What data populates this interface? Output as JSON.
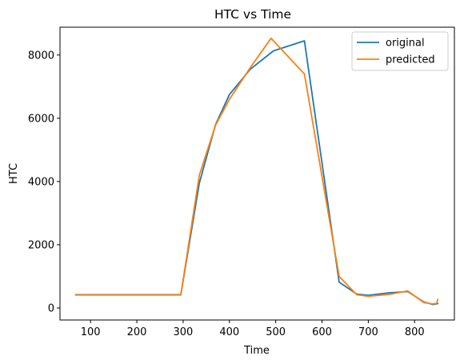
{
  "chart_data": {
    "type": "line",
    "title": "HTC vs Time",
    "xlabel": "Time",
    "ylabel": "HTC",
    "xlim": [
      34,
      886
    ],
    "ylim": [
      -380,
      8880
    ],
    "xticks": [
      100,
      200,
      300,
      400,
      500,
      600,
      700,
      800
    ],
    "yticks": [
      0,
      2000,
      4000,
      6000,
      8000
    ],
    "grid": false,
    "legend_position": "top-right",
    "series": [
      {
        "name": "original",
        "color": "#1f77b4",
        "x": [
          68,
          295,
          335,
          370,
          400,
          445,
          495,
          562,
          637,
          675,
          700,
          745,
          785,
          820,
          840,
          850
        ],
        "y": [
          420,
          420,
          3950,
          5800,
          6750,
          7550,
          8130,
          8450,
          820,
          440,
          400,
          480,
          520,
          190,
          110,
          140
        ]
      },
      {
        "name": "predicted",
        "color": "#ff7f0e",
        "x": [
          68,
          295,
          335,
          370,
          400,
          445,
          490,
          562,
          637,
          675,
          700,
          745,
          785,
          820,
          840,
          848,
          850
        ],
        "y": [
          410,
          410,
          4200,
          5780,
          6600,
          7600,
          8530,
          7400,
          1000,
          420,
          370,
          430,
          540,
          170,
          130,
          150,
          270
        ]
      }
    ]
  }
}
